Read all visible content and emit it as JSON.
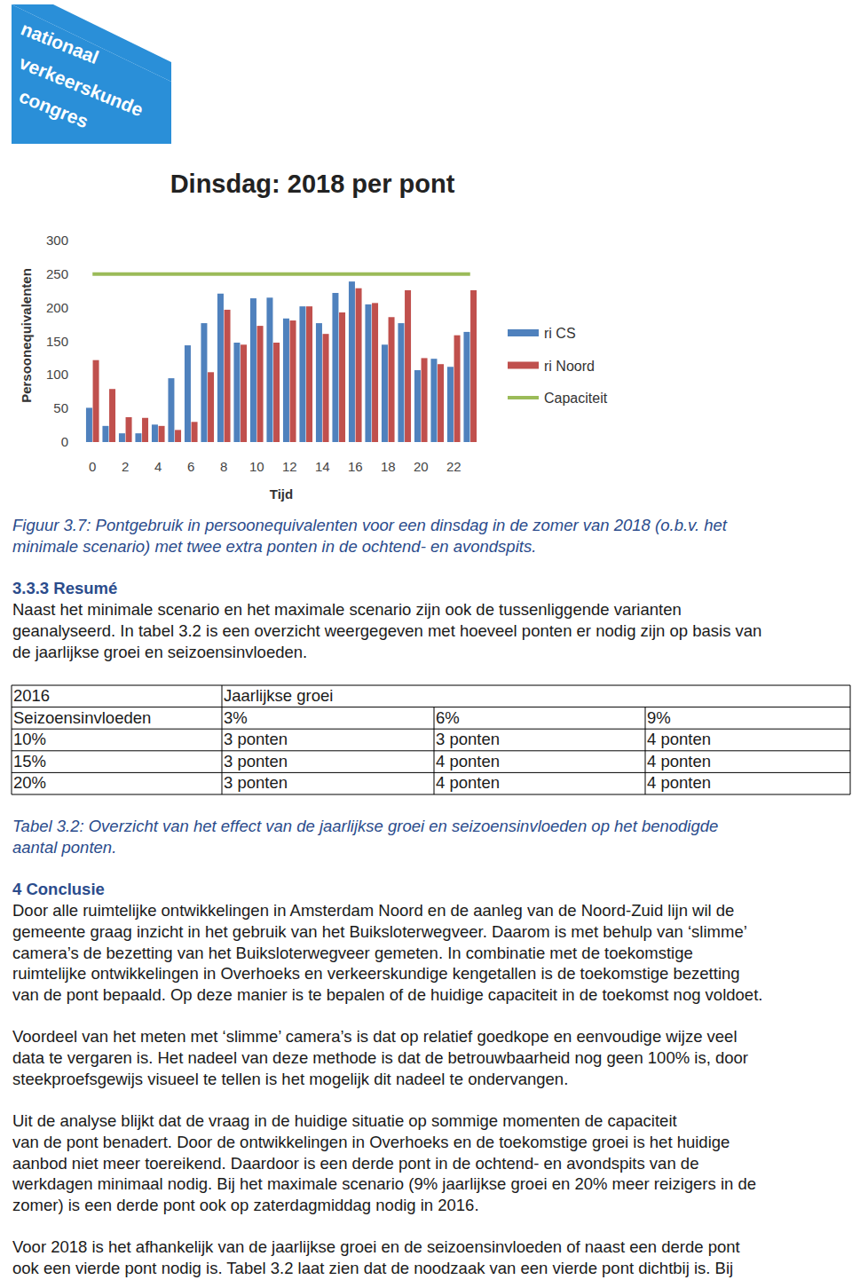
{
  "logo": {
    "lines": [
      "nationaal",
      "verkeerskunde",
      "congres"
    ]
  },
  "chart_data": {
    "type": "bar",
    "title": "Dinsdag: 2018 per pont",
    "x_label": "Tijd",
    "y_label": "Persoonequivalenten",
    "categories": [
      "0",
      null,
      "2",
      null,
      "4",
      null,
      "6",
      null,
      "8",
      null,
      "10",
      null,
      "12",
      null,
      "14",
      null,
      "16",
      null,
      "18",
      null,
      "20",
      null,
      "22",
      null
    ],
    "series": [
      {
        "name": "ri CS",
        "color": "#4f81bd",
        "type": "bar",
        "values": [
          51,
          24,
          13,
          13,
          26,
          95,
          144,
          177,
          221,
          148,
          214,
          215,
          184,
          202,
          177,
          222,
          239,
          205,
          145,
          177,
          107,
          124,
          112,
          164
        ]
      },
      {
        "name": "ri Noord",
        "color": "#c0504d",
        "type": "bar",
        "values": [
          122,
          79,
          37,
          36,
          24,
          18,
          30,
          104,
          197,
          145,
          173,
          148,
          181,
          202,
          161,
          193,
          229,
          207,
          186,
          226,
          125,
          116,
          159,
          226
        ]
      },
      {
        "name": "Capaciteit",
        "color": "#9bbb59",
        "type": "line",
        "values": [
          250,
          250,
          250,
          250,
          250,
          250,
          250,
          250,
          250,
          250,
          250,
          250,
          250,
          250,
          250,
          250,
          250,
          250,
          250,
          250,
          250,
          250,
          250,
          250
        ]
      }
    ],
    "ylim": [
      0,
      300
    ],
    "yticks": [
      0,
      50,
      100,
      150,
      200,
      250,
      300
    ],
    "grid": false,
    "legend": "right"
  },
  "caption": {
    "lines": [
      "Figuur 3.7: Pontgebruik in persoonequivalenten voor een dinsdag in de zomer van 2018 (o.b.v. het",
      "minimale scenario) met twee extra ponten in de ochtend- en avondspits."
    ]
  },
  "resume": {
    "heading": "3.3.3 Resumé",
    "lines": [
      "Naast het minimale scenario en het maximale scenario zijn ook de tussenliggende varianten",
      "geanalyseerd. In tabel 3.2 is een overzicht weergegeven met hoeveel ponten er nodig zijn op basis van",
      "de jaarlijkse groei en seizoensinvloeden."
    ]
  },
  "table": {
    "header": {
      "corner": "2016",
      "group": "Jaarlijkse groei"
    },
    "columns": [
      "Seizoensinvloeden",
      "3%",
      "6%",
      "9%"
    ],
    "rows": [
      [
        "10%",
        "3 ponten",
        "3 ponten",
        "4 ponten"
      ],
      [
        "15%",
        "3 ponten",
        "4 ponten",
        "4 ponten"
      ],
      [
        "20%",
        "3 ponten",
        "4 ponten",
        "4 ponten"
      ]
    ]
  },
  "table_caption": {
    "lines": [
      "Tabel 3.2: Overzicht van het effect van de jaarlijkse groei en seizoensinvloeden op het benodigde",
      "aantal ponten."
    ]
  },
  "conclusion": {
    "heading": "4 Conclusie",
    "paragraphs": [
      [
        "Door alle ruimtelijke ontwikkelingen in Amsterdam Noord en de aanleg van de Noord-Zuid lijn wil de",
        "gemeente graag inzicht in het gebruik van het Buiksloterwegveer. Daarom is met behulp van ‘slimme’",
        "camera’s de bezetting van het Buiksloterwegveer gemeten. In combinatie met de toekomstige",
        "ruimtelijke ontwikkelingen in Overhoeks en verkeerskundige kengetallen is de toekomstige bezetting",
        "van de pont bepaald. Op deze manier is te bepalen of de huidige capaciteit in de toekomst nog voldoet."
      ],
      [
        "Voordeel van het meten met ‘slimme’ camera’s is dat op relatief goedkope en eenvoudige wijze veel",
        "data te vergaren is. Het nadeel van deze methode is dat de betrouwbaarheid nog geen 100% is, door",
        "steekproefsgewijs visueel te tellen is het mogelijk dit nadeel te ondervangen."
      ],
      [
        "Uit de analyse blijkt dat de vraag in de huidige situatie op sommige momenten de capaciteit",
        "van de pont benadert. Door de ontwikkelingen in Overhoeks en de toekomstige groei is het huidige",
        "aanbod niet meer toereikend. Daardoor is een derde pont in de ochtend- en avondspits van de",
        "werkdagen minimaal nodig. Bij het maximale scenario (9% jaarlijkse groei en 20% meer reizigers in de",
        "zomer) is een derde pont ook op zaterdagmiddag nodig in 2016."
      ],
      [
        "Voor 2018 is het afhankelijk van de jaarlijkse groei en de seizoensinvloeden of naast een derde pont",
        "ook een vierde pont nodig is. Tabel 3.2 laat zien dat de noodzaak van een vierde pont dichtbij is. Bij"
      ]
    ]
  }
}
